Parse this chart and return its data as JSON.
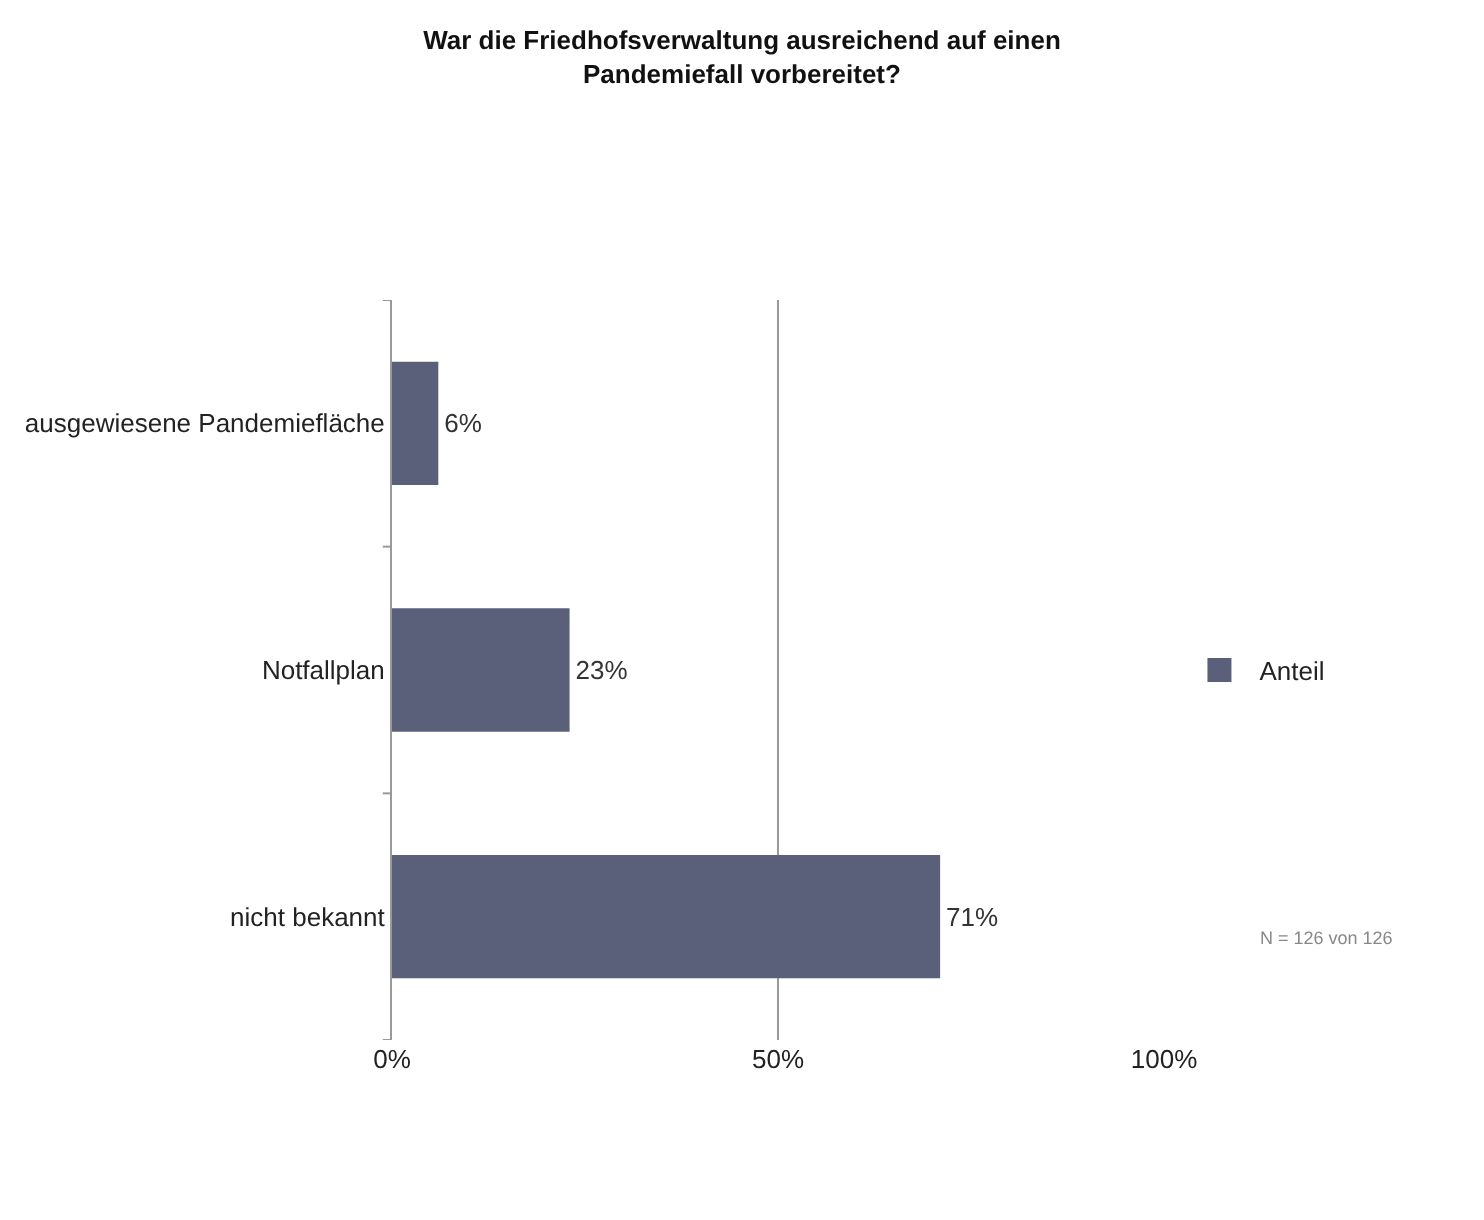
{
  "chart_data": {
    "type": "bar",
    "orientation": "horizontal",
    "title": "War die Friedhofsverwaltung ausreichend auf einen\nPandemiefall vorbereitet?",
    "categories": [
      "ausgewiesene Pandemiefläche",
      "Notfallplan",
      "nicht bekannt"
    ],
    "series": [
      {
        "name": "Anteil",
        "color": "#5a6079",
        "values": [
          6,
          23,
          71
        ],
        "value_labels": [
          "6%",
          "23%",
          "71%"
        ]
      }
    ],
    "xlim": [
      0,
      100
    ],
    "xticks": [
      {
        "value": 0,
        "label": "0%"
      },
      {
        "value": 50,
        "label": "50%"
      },
      {
        "value": 100,
        "label": "100%"
      }
    ],
    "grid": "x",
    "legend": "right",
    "annotations": [
      "N = 126 von 126"
    ]
  }
}
